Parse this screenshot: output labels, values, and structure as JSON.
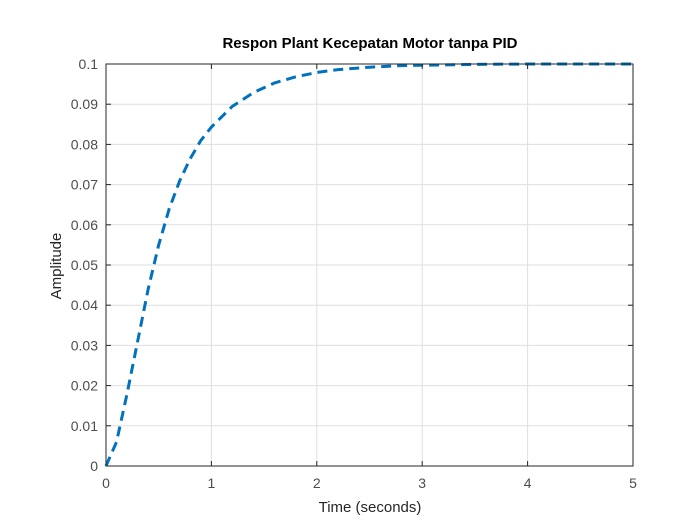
{
  "chart_data": {
    "type": "line",
    "title": "Respon Plant Kecepatan Motor tanpa PID",
    "xlabel": "Time (seconds)",
    "ylabel": "Amplitude",
    "xlim": [
      0,
      5
    ],
    "ylim": [
      0,
      0.1
    ],
    "xticks": [
      0,
      1,
      2,
      3,
      4,
      5
    ],
    "xtick_labels": [
      "0",
      "1",
      "2",
      "3",
      "4",
      "5"
    ],
    "yticks": [
      0,
      0.01,
      0.02,
      0.03,
      0.04,
      0.05,
      0.06,
      0.07,
      0.08,
      0.09,
      0.1
    ],
    "ytick_labels": [
      "0",
      "0.01",
      "0.02",
      "0.03",
      "0.04",
      "0.05",
      "0.06",
      "0.07",
      "0.08",
      "0.09",
      "0.1"
    ],
    "grid": true,
    "series": [
      {
        "color": "#0072BD",
        "line_style": "dashed",
        "x": [
          0,
          0.1,
          0.2,
          0.3,
          0.4,
          0.5,
          0.6,
          0.7,
          0.8,
          0.9,
          1.0,
          1.2,
          1.4,
          1.6,
          1.8,
          2.0,
          2.2,
          2.5,
          2.8,
          3.0,
          3.5,
          4.0,
          4.5,
          5.0
        ],
        "y": [
          0,
          0.006,
          0.018,
          0.031,
          0.044,
          0.055,
          0.064,
          0.071,
          0.0765,
          0.081,
          0.0843,
          0.0895,
          0.0929,
          0.0953,
          0.0968,
          0.0979,
          0.0986,
          0.0992,
          0.0996,
          0.0997,
          0.0999,
          0.1,
          0.1,
          0.1
        ]
      }
    ]
  }
}
